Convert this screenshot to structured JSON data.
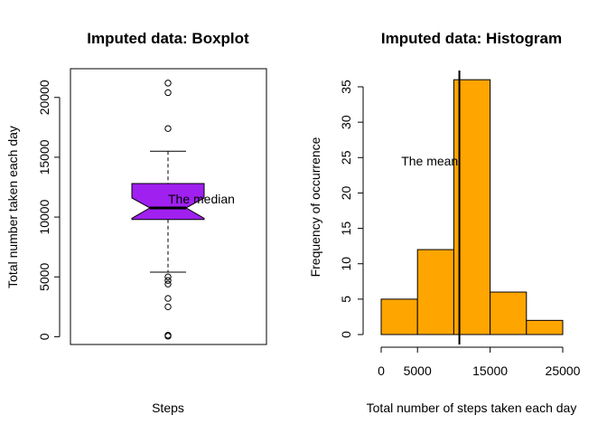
{
  "chart_data": [
    {
      "type": "boxplot",
      "title": "Imputed data: Boxplot",
      "xlabel": "Steps",
      "ylabel": "Total number taken each day",
      "ylim": [
        -650,
        22400
      ],
      "yticks": [
        0,
        5000,
        10000,
        15000,
        20000
      ],
      "ytick_labels": [
        "0",
        "5000",
        "10000",
        "15000",
        "20000"
      ],
      "box_color": "#a020f0",
      "notch": true,
      "stats": {
        "whisker_low": 5400,
        "q1": 9800,
        "median": 10766,
        "q3": 12800,
        "whisker_high": 15500,
        "notch_low": 9900,
        "notch_high": 11600
      },
      "outliers": [
        41,
        126,
        2500,
        3200,
        4400,
        4700,
        5000,
        17400,
        20400,
        21200
      ],
      "annotation": {
        "text": "The median",
        "x": 1.0,
        "y": 11500
      }
    },
    {
      "type": "histogram",
      "title": "Imputed data: Histogram",
      "xlabel": "Total number of steps taken each day",
      "ylabel": "Frequency of occurrence",
      "bar_color": "#ffa500",
      "bins": [
        {
          "start": 0,
          "end": 5000,
          "count": 5
        },
        {
          "start": 5000,
          "end": 10000,
          "count": 12
        },
        {
          "start": 10000,
          "end": 15000,
          "count": 36
        },
        {
          "start": 15000,
          "end": 20000,
          "count": 6
        },
        {
          "start": 20000,
          "end": 25000,
          "count": 2
        }
      ],
      "xlim": [
        0,
        25000
      ],
      "ylim": [
        0,
        37
      ],
      "xticks": [
        0,
        5000,
        15000,
        25000
      ],
      "xtick_labels": [
        "0",
        "5000",
        "15000",
        "25000"
      ],
      "yticks": [
        0,
        5,
        10,
        15,
        20,
        25,
        30,
        35
      ],
      "ytick_labels": [
        "0",
        "5",
        "10",
        "15",
        "20",
        "25",
        "30",
        "35"
      ],
      "mean_line": 10766,
      "annotation": {
        "text": "The mean",
        "x": 5000,
        "y": 24.5
      }
    }
  ]
}
